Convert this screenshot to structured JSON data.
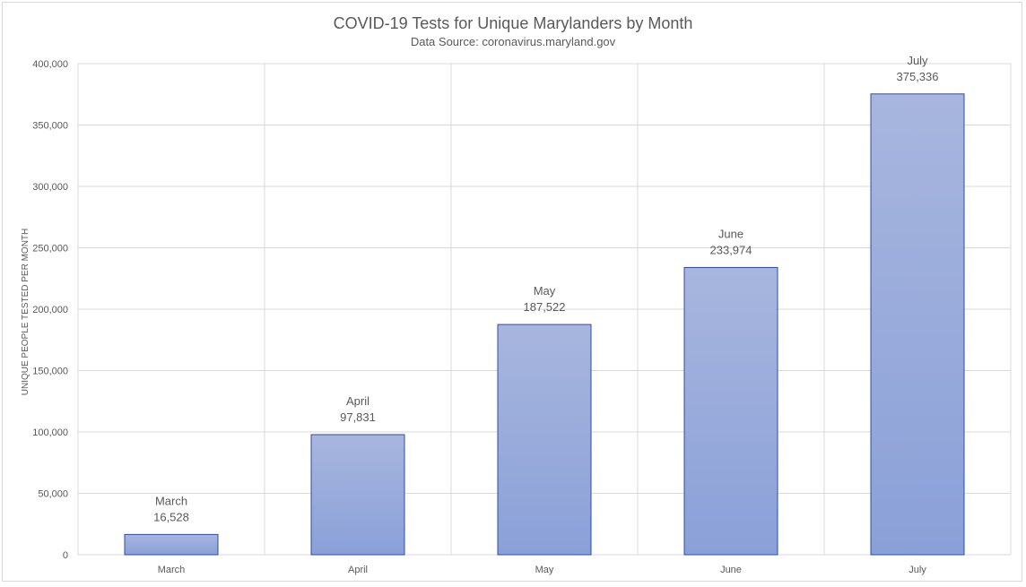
{
  "chart_data": {
    "type": "bar",
    "title": "COVID-19 Tests for Unique Marylanders by Month",
    "subtitle": "Data Source: coronavirus.maryland.gov",
    "xlabel": "",
    "ylabel": "UNIQUE PEOPLE TESTED PER MONTH",
    "categories": [
      "March",
      "April",
      "May",
      "June",
      "July"
    ],
    "values": [
      16528,
      97831,
      187522,
      233974,
      375336
    ],
    "value_labels": [
      "16,528",
      "97,831",
      "187,522",
      "233,974",
      "375,336"
    ],
    "yticks": [
      "0",
      "50,000",
      "100,000",
      "150,000",
      "200,000",
      "250,000",
      "300,000",
      "350,000",
      "400,000"
    ],
    "ylim": [
      0,
      400000
    ],
    "grid": true,
    "legend": "none",
    "colors": {
      "bar_top": "#a8b6de",
      "bar_bottom": "#8aa0d8",
      "bar_stroke": "#2f4ea0",
      "grid": "#d9d9d9",
      "text": "#595959",
      "title": "#595959"
    }
  }
}
